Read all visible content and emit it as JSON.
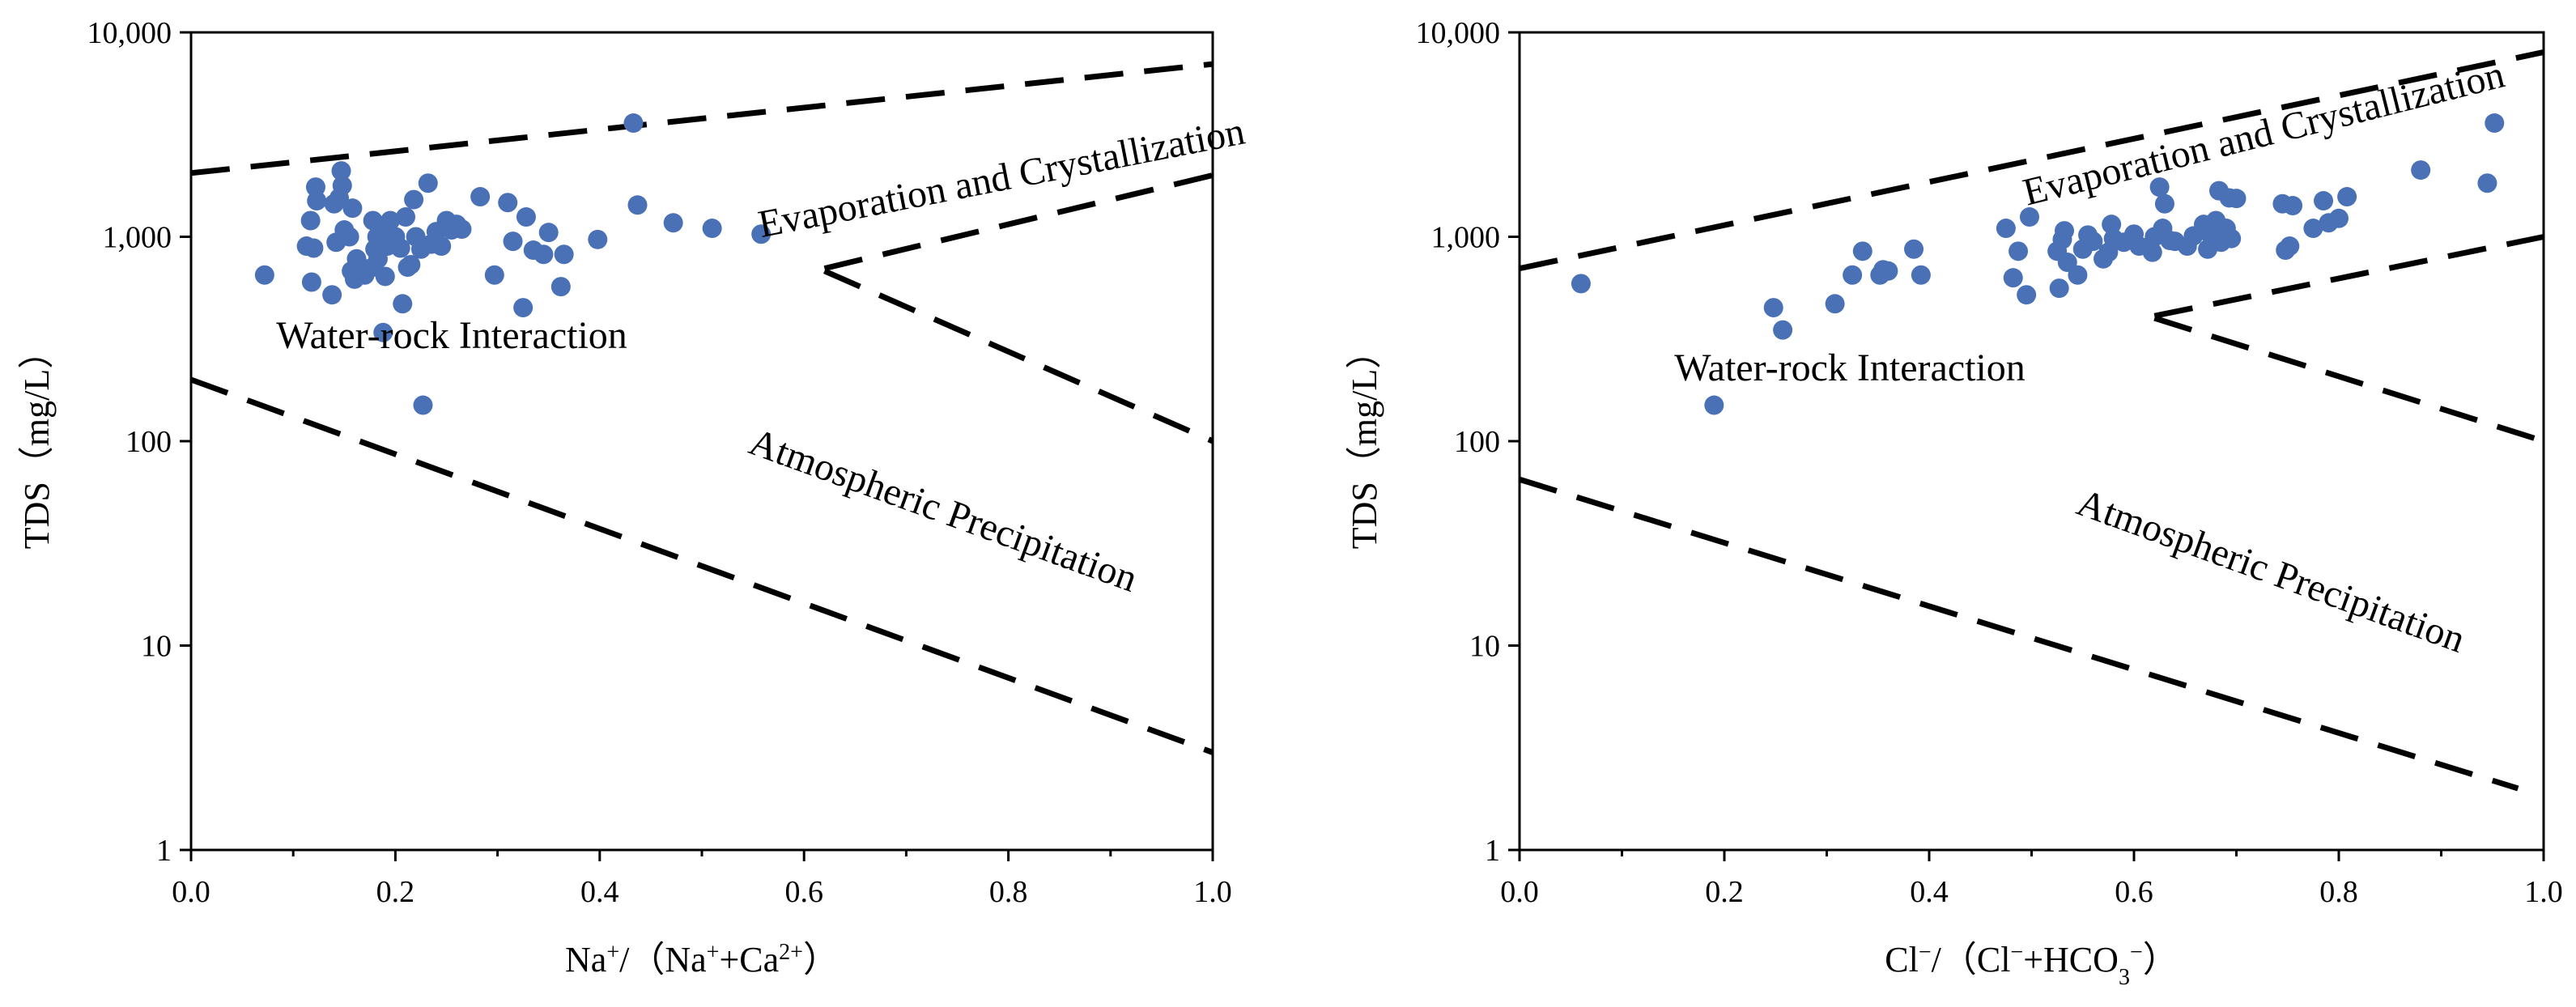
{
  "panels": [
    {
      "chart_data": {
        "type": "scatter",
        "title": "",
        "xlabel": {
          "prefix": "Na",
          "prefix_sup": "+",
          "mid": "/（Na",
          "mid_sup": "+",
          "mid2": "+Ca",
          "mid2_sup": "2+",
          "suffix": "）"
        },
        "ylabel": "TDS（mg/L）",
        "xlim": [
          0,
          1
        ],
        "ylim": [
          1,
          10000
        ],
        "yscale": "log",
        "xticks": [
          "0.0",
          "0.2",
          "0.4",
          "0.6",
          "0.8",
          "1.0"
        ],
        "yticks": [
          "1",
          "10",
          "100",
          "1,000",
          "10,000"
        ],
        "grid": false,
        "marker_color": "#4a71b6",
        "regions": [
          {
            "label": "Evaporation and Crystallization",
            "angle_deg": -11
          },
          {
            "label": "Water-rock Interaction",
            "angle_deg": 0
          },
          {
            "label": "Atmospheric Precipitation",
            "angle_deg": 20
          }
        ],
        "boundary_lines": [
          {
            "x": [
              0.0,
              1.0
            ],
            "y": [
              2050,
              7000
            ]
          },
          {
            "x": [
              0.62,
              1.0
            ],
            "y": [
              700,
              2000
            ]
          },
          {
            "x": [
              0.62,
              1.0
            ],
            "y": [
              680,
              100
            ]
          },
          {
            "x": [
              0.0,
              1.0
            ],
            "y": [
              200,
              3
            ]
          }
        ],
        "points": [
          [
            0.072,
            650
          ],
          [
            0.113,
            900
          ],
          [
            0.117,
            1200
          ],
          [
            0.118,
            600
          ],
          [
            0.12,
            880
          ],
          [
            0.122,
            1750
          ],
          [
            0.123,
            1500
          ],
          [
            0.138,
            520
          ],
          [
            0.14,
            1450
          ],
          [
            0.142,
            940
          ],
          [
            0.145,
            1550
          ],
          [
            0.147,
            2100
          ],
          [
            0.148,
            1780
          ],
          [
            0.15,
            1080
          ],
          [
            0.155,
            1000
          ],
          [
            0.157,
            680
          ],
          [
            0.158,
            1380
          ],
          [
            0.16,
            620
          ],
          [
            0.162,
            780
          ],
          [
            0.165,
            660
          ],
          [
            0.17,
            650
          ],
          [
            0.175,
            700
          ],
          [
            0.178,
            1200
          ],
          [
            0.18,
            870
          ],
          [
            0.182,
            1000
          ],
          [
            0.183,
            780
          ],
          [
            0.185,
            1100
          ],
          [
            0.188,
            340
          ],
          [
            0.19,
            640
          ],
          [
            0.192,
            900
          ],
          [
            0.195,
            1200
          ],
          [
            0.2,
            1000
          ],
          [
            0.205,
            880
          ],
          [
            0.207,
            470
          ],
          [
            0.21,
            1250
          ],
          [
            0.212,
            710
          ],
          [
            0.215,
            730
          ],
          [
            0.218,
            1520
          ],
          [
            0.22,
            1000
          ],
          [
            0.225,
            870
          ],
          [
            0.227,
            150
          ],
          [
            0.232,
            1830
          ],
          [
            0.235,
            920
          ],
          [
            0.24,
            1060
          ],
          [
            0.245,
            900
          ],
          [
            0.25,
            1200
          ],
          [
            0.255,
            1080
          ],
          [
            0.26,
            1150
          ],
          [
            0.265,
            1090
          ],
          [
            0.283,
            1570
          ],
          [
            0.297,
            650
          ],
          [
            0.31,
            1470
          ],
          [
            0.315,
            950
          ],
          [
            0.325,
            450
          ],
          [
            0.328,
            1250
          ],
          [
            0.335,
            860
          ],
          [
            0.345,
            820
          ],
          [
            0.35,
            1050
          ],
          [
            0.362,
            570
          ],
          [
            0.365,
            820
          ],
          [
            0.398,
            970
          ],
          [
            0.433,
            3600
          ],
          [
            0.437,
            1430
          ],
          [
            0.472,
            1170
          ],
          [
            0.51,
            1100
          ],
          [
            0.558,
            1030
          ]
        ]
      }
    },
    {
      "chart_data": {
        "type": "scatter",
        "title": "",
        "xlabel": {
          "prefix": "Cl",
          "prefix_sup": "−",
          "mid": "/（Cl",
          "mid_sup": "−",
          "mid2": "+HCO",
          "mid2_sub": "3",
          "mid2_sup": "−",
          "suffix": "）"
        },
        "ylabel": "TDS（mg/L）",
        "xlim": [
          0,
          1
        ],
        "ylim": [
          1,
          10000
        ],
        "yscale": "log",
        "xticks": [
          "0.0",
          "0.2",
          "0.4",
          "0.6",
          "0.8",
          "1.0"
        ],
        "yticks": [
          "1",
          "10",
          "100",
          "1,000",
          "10,000"
        ],
        "grid": false,
        "marker_color": "#4a71b6",
        "regions": [
          {
            "label": "Evaporation and Crystallization",
            "angle_deg": -14
          },
          {
            "label": "Water-rock Interaction",
            "angle_deg": 0
          },
          {
            "label": "Atmospheric Precipitation",
            "angle_deg": 20
          }
        ],
        "boundary_lines": [
          {
            "x": [
              0.0,
              1.0
            ],
            "y": [
              700,
              8000
            ]
          },
          {
            "x": [
              0.62,
              1.0
            ],
            "y": [
              410,
              1000
            ]
          },
          {
            "x": [
              0.62,
              1.0
            ],
            "y": [
              400,
              100
            ]
          },
          {
            "x": [
              0.0,
              0.975
            ],
            "y": [
              65,
              2
            ]
          }
        ],
        "points": [
          [
            0.06,
            590
          ],
          [
            0.19,
            150
          ],
          [
            0.248,
            450
          ],
          [
            0.257,
            350
          ],
          [
            0.308,
            470
          ],
          [
            0.325,
            650
          ],
          [
            0.335,
            850
          ],
          [
            0.352,
            650
          ],
          [
            0.355,
            690
          ],
          [
            0.36,
            680
          ],
          [
            0.385,
            870
          ],
          [
            0.392,
            650
          ],
          [
            0.475,
            1100
          ],
          [
            0.482,
            630
          ],
          [
            0.487,
            850
          ],
          [
            0.495,
            520
          ],
          [
            0.498,
            1250
          ],
          [
            0.525,
            850
          ],
          [
            0.527,
            560
          ],
          [
            0.53,
            970
          ],
          [
            0.532,
            1070
          ],
          [
            0.535,
            750
          ],
          [
            0.545,
            650
          ],
          [
            0.55,
            870
          ],
          [
            0.555,
            1020
          ],
          [
            0.56,
            950
          ],
          [
            0.57,
            780
          ],
          [
            0.575,
            840
          ],
          [
            0.578,
            1150
          ],
          [
            0.58,
            980
          ],
          [
            0.59,
            940
          ],
          [
            0.6,
            1030
          ],
          [
            0.605,
            900
          ],
          [
            0.618,
            840
          ],
          [
            0.62,
            1000
          ],
          [
            0.625,
            1750
          ],
          [
            0.628,
            1100
          ],
          [
            0.63,
            1450
          ],
          [
            0.635,
            960
          ],
          [
            0.64,
            950
          ],
          [
            0.652,
            900
          ],
          [
            0.658,
            1010
          ],
          [
            0.668,
            1150
          ],
          [
            0.672,
            870
          ],
          [
            0.675,
            1020
          ],
          [
            0.68,
            1200
          ],
          [
            0.683,
            1680
          ],
          [
            0.685,
            940
          ],
          [
            0.69,
            1100
          ],
          [
            0.693,
            1550
          ],
          [
            0.695,
            980
          ],
          [
            0.7,
            1540
          ],
          [
            0.745,
            1450
          ],
          [
            0.748,
            860
          ],
          [
            0.752,
            900
          ],
          [
            0.755,
            1420
          ],
          [
            0.775,
            1100
          ],
          [
            0.785,
            1500
          ],
          [
            0.79,
            1170
          ],
          [
            0.8,
            1230
          ],
          [
            0.808,
            1570
          ],
          [
            0.88,
            2120
          ],
          [
            0.945,
            1830
          ],
          [
            0.952,
            3600
          ]
        ]
      }
    }
  ]
}
